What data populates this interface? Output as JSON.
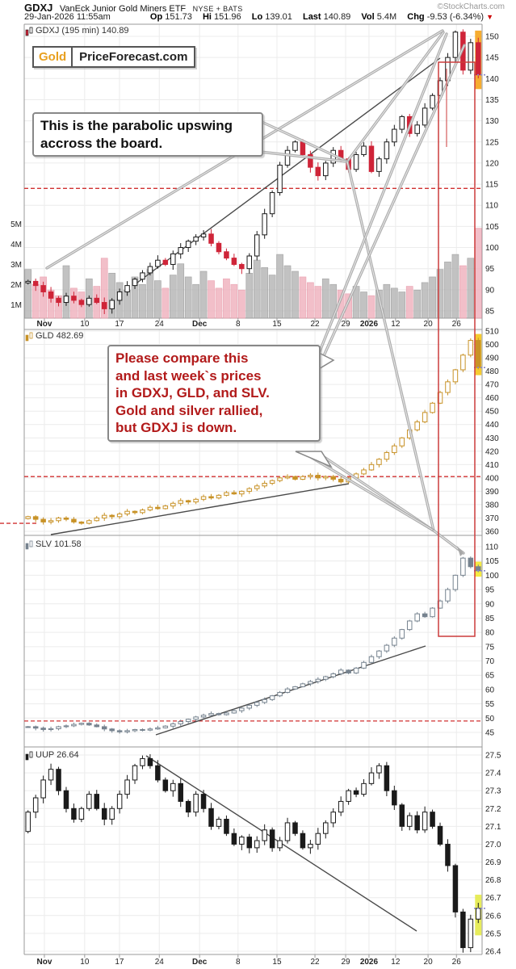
{
  "header": {
    "symbol": "GDXJ",
    "description": "VanEck Junior Gold Miners ETF",
    "exchange": "NYSE + BATS",
    "copyright": "©StockCharts.com",
    "datetime": "29-Jan-2026 11:55am",
    "op_label": "Op",
    "op": "151.73",
    "hi_label": "Hi",
    "hi": "151.96",
    "lo_label": "Lo",
    "lo": "139.01",
    "last_label": "Last",
    "last": "140.89",
    "vol_label": "Vol",
    "vol": "5.4M",
    "chg_label": "Chg",
    "chg": "-9.53 (-6.34%)",
    "down_arrow": "▼"
  },
  "logo": {
    "gold": "Gold",
    "site": "PriceForecast.com"
  },
  "annotations": {
    "note1": {
      "l1": "This is the parabolic upswing",
      "l2": "accross the board."
    },
    "note2": {
      "l1": "Please compare this",
      "l2": "and last week`s prices",
      "l3": "in GDXJ, GLD, and SLV.",
      "l4": "Gold and silver rallied,",
      "l5": "but GDXJ is down."
    },
    "note2_color": "#b21a1a"
  },
  "chart_data": {
    "type": "candlestick-multi-panel",
    "x_labels": [
      {
        "text": "Nov",
        "bold": true,
        "pos": 0.044
      },
      {
        "text": "10",
        "bold": false,
        "pos": 0.132
      },
      {
        "text": "17",
        "bold": false,
        "pos": 0.208
      },
      {
        "text": "24",
        "bold": false,
        "pos": 0.295
      },
      {
        "text": "Dec",
        "bold": true,
        "pos": 0.383
      },
      {
        "text": "8",
        "bold": false,
        "pos": 0.467
      },
      {
        "text": "15",
        "bold": false,
        "pos": 0.552
      },
      {
        "text": "22",
        "bold": false,
        "pos": 0.635
      },
      {
        "text": "29",
        "bold": false,
        "pos": 0.702
      },
      {
        "text": "2026",
        "bold": true,
        "pos": 0.753
      },
      {
        "text": "12",
        "bold": false,
        "pos": 0.811
      },
      {
        "text": "20",
        "bold": false,
        "pos": 0.882
      },
      {
        "text": "26",
        "bold": false,
        "pos": 0.944
      }
    ],
    "panels": [
      {
        "symbol": "GDXJ",
        "title": "GDXJ (195 min) 140.89",
        "last": 140.89,
        "yticks": [
          150,
          145,
          140,
          135,
          130,
          125,
          120,
          115,
          110,
          105,
          100,
          95,
          90,
          85
        ],
        "up_color": "#1a1a1a",
        "down_color": "#cf2438",
        "highlight_color": "#f5a31a",
        "support_lines": [
          {
            "value": 114
          }
        ],
        "closes": [
          92,
          91,
          89.5,
          88,
          87,
          88.5,
          87.5,
          86.5,
          88,
          87,
          85.5,
          87.5,
          89.5,
          91,
          92.5,
          94,
          95.5,
          97,
          96,
          98.5,
          100,
          101.5,
          102.5,
          103.2,
          101,
          99,
          97.5,
          96,
          95,
          98,
          103,
          108,
          113,
          119.5,
          123,
          125,
          122,
          119,
          117,
          120,
          123,
          121,
          118.5,
          122,
          124,
          118,
          121,
          125,
          128,
          131,
          127,
          129,
          133,
          136,
          139.5,
          145,
          151,
          142,
          148.5,
          140.89
        ],
        "volume_m": [
          2.6,
          1.8,
          2.2,
          1.5,
          1.2,
          2.8,
          1.6,
          1.4,
          2.1,
          1.7,
          3.2,
          2.4,
          1.9,
          1.5,
          2.2,
          1.8,
          2.6,
          2.0,
          1.6,
          2.3,
          2.9,
          2.2,
          1.8,
          2.5,
          2.0,
          1.6,
          2.1,
          1.8,
          1.5,
          2.4,
          3.1,
          2.7,
          2.3,
          3.4,
          2.8,
          2.5,
          2.2,
          1.9,
          1.7,
          2.1,
          1.8,
          1.5,
          1.3,
          1.7,
          1.4,
          1.2,
          1.5,
          1.8,
          1.6,
          1.4,
          1.7,
          1.5,
          1.9,
          2.2,
          2.6,
          3.0,
          3.4,
          2.8,
          3.2,
          4.8
        ],
        "volume_axis_labels": [
          "5M",
          "4M",
          "3M",
          "2M",
          "1M"
        ]
      },
      {
        "symbol": "GLD",
        "title": "GLD 482.69",
        "last": 482.69,
        "yticks": [
          510,
          500,
          490,
          480,
          470,
          460,
          450,
          440,
          430,
          420,
          410,
          400,
          390,
          380,
          370,
          360
        ],
        "up_color": "#c89227",
        "down_color": "#c89227",
        "highlight_color": "#f5c51a",
        "support_lines": [
          {
            "value": 401
          },
          {
            "value": 366,
            "stub": true
          }
        ],
        "closes": [
          371,
          369,
          367,
          368,
          370,
          369,
          367,
          366,
          368,
          370,
          372,
          371,
          373,
          375,
          374,
          376,
          378,
          377,
          379,
          381,
          383,
          382,
          384,
          386,
          385,
          387,
          389,
          388,
          390,
          392,
          394,
          396,
          398,
          400,
          401,
          399,
          401,
          402,
          400,
          401,
          399,
          397,
          400,
          403,
          406,
          410,
          414,
          419,
          424,
          430,
          436,
          442,
          449,
          456,
          464,
          472,
          481,
          492,
          503,
          482.69
        ]
      },
      {
        "symbol": "SLV",
        "title": "SLV 101.58",
        "last": 101.58,
        "yticks": [
          110,
          105,
          100,
          95,
          90,
          85,
          80,
          75,
          70,
          65,
          60,
          55,
          50,
          45
        ],
        "up_color": "#76838f",
        "down_color": "#76838f",
        "highlight_color": "#f4e82e",
        "support_lines": [
          {
            "value": 49
          }
        ],
        "closes": [
          47,
          46.5,
          46,
          46.3,
          47,
          47.3,
          47.8,
          48.2,
          47.6,
          47,
          46.2,
          45.6,
          45.2,
          45.6,
          46,
          45.8,
          46.2,
          46.6,
          47.2,
          48,
          48.8,
          49.6,
          50.4,
          51,
          51.6,
          51.2,
          51.8,
          52.6,
          53.5,
          54.5,
          55.5,
          56.5,
          57.8,
          59,
          60.2,
          61,
          62,
          62.8,
          63.6,
          64.5,
          65.5,
          66.8,
          65.8,
          67.5,
          69.5,
          71.5,
          73.5,
          75.5,
          78,
          81,
          84,
          86.5,
          85.5,
          88.5,
          91,
          95,
          100,
          106,
          103,
          101.58
        ]
      },
      {
        "symbol": "UUP",
        "title": "UUP 26.64",
        "last": 26.64,
        "yticks": [
          27.5,
          27.4,
          27.3,
          27.2,
          27.1,
          27.0,
          26.9,
          26.8,
          26.7,
          26.6,
          26.5,
          26.4
        ],
        "up_color": "#1a1a1a",
        "down_color": "#1a1a1a",
        "highlight_color": "#e4ea49",
        "support_lines": [],
        "closes": [
          27.18,
          27.26,
          27.36,
          27.42,
          27.3,
          27.2,
          27.14,
          27.2,
          27.28,
          27.2,
          27.14,
          27.2,
          27.28,
          27.36,
          27.44,
          27.48,
          27.44,
          27.36,
          27.3,
          27.34,
          27.24,
          27.18,
          27.28,
          27.2,
          27.1,
          27.14,
          27.06,
          27.0,
          27.04,
          26.98,
          27.02,
          27.08,
          26.98,
          27.02,
          27.12,
          27.06,
          26.98,
          27.0,
          27.06,
          27.12,
          27.18,
          27.24,
          27.3,
          27.28,
          27.34,
          27.4,
          27.44,
          27.3,
          27.22,
          27.1,
          27.16,
          27.08,
          27.18,
          27.1,
          27.0,
          26.88,
          26.62,
          26.42,
          26.58,
          26.64
        ]
      }
    ],
    "colors": {
      "support_dashed": "#d03030",
      "last_price_dashed": "#8888cc",
      "callout_gray": "#a8a8a8",
      "highlight_box_red": "#cc3b3b",
      "grid": "#ececec",
      "frame": "#999999",
      "volume_up": "#b8b8b8",
      "volume_down": "#f0b4c0"
    }
  }
}
